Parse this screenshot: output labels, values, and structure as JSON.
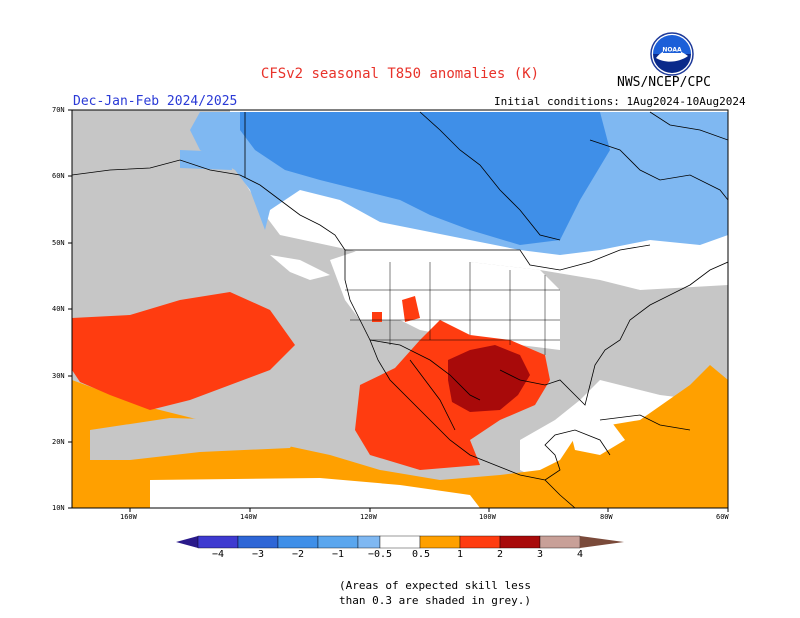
{
  "title": "CFSv2 seasonal T850 anomalies (K)",
  "period": "Dec-Jan-Feb 2024/2025",
  "initial_conditions": "Initial conditions: 1Aug2024-10Aug2024",
  "agency": "NWS/NCEP/CPC",
  "logo_name": "noaa-logo",
  "map": {
    "lat_labels": [
      "70N",
      "60N",
      "50N",
      "40N",
      "30N",
      "20N",
      "10N"
    ],
    "lon_labels": [
      "160W",
      "140W",
      "120W",
      "100W",
      "80W",
      "60W"
    ]
  },
  "colorbar": {
    "labels": [
      "−4",
      "−3",
      "−2",
      "−1",
      "−0.5",
      "0.5",
      "1",
      "2",
      "3",
      "4"
    ],
    "colors": {
      "lt_m4": "#2a1a8a",
      "m4_m3": "#3e3ad0",
      "m3_m2": "#2e66d6",
      "m2_m1": "#3f8fe8",
      "m1_m05": "#7fb8f2",
      "neutral": "#ffffff",
      "p05_p1": "#ffa000",
      "p1_p2": "#ff3c10",
      "p2_p3": "#a80a0a",
      "p3_p4": "#c8a098",
      "gt_p4": "#7a4a3a"
    },
    "low_skill": "#c8c8c8"
  },
  "note": [
    "(Areas of expected skill less",
    "than 0.3 are shaded in grey.)"
  ]
}
